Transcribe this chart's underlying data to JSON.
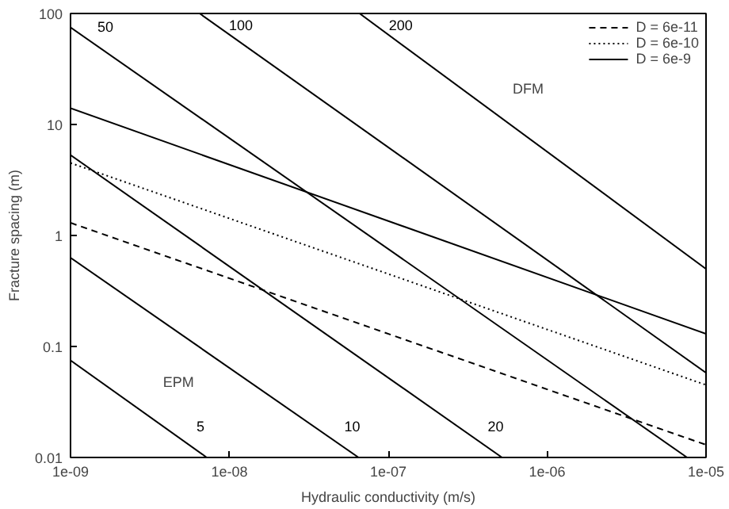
{
  "chart_data": {
    "type": "line",
    "xlabel": "Hydraulic conductivity (m/s)",
    "ylabel": "Fracture spacing (m)",
    "log": "xy",
    "grid": false,
    "legend": "top right",
    "xlim": [
      1e-09,
      1e-05
    ],
    "ylim": [
      0.01,
      100
    ],
    "xticks": [
      {
        "value": 1e-09,
        "label": "1e-09"
      },
      {
        "value": 1e-08,
        "label": "1e-08"
      },
      {
        "value": 1e-07,
        "label": "1e-07"
      },
      {
        "value": 1e-06,
        "label": "1e-06"
      },
      {
        "value": 1e-05,
        "label": "1e-05"
      }
    ],
    "yticks": [
      0.01,
      0.1,
      1,
      10,
      100
    ],
    "series": [
      {
        "name": "D = 6e-11",
        "color": "#000000",
        "line_style": "dashed",
        "x": [
          1e-09,
          1e-05
        ],
        "values": [
          1.3,
          0.013
        ]
      },
      {
        "name": "D = 6e-10",
        "color": "#000000",
        "line_style": "dotted",
        "x": [
          1e-09,
          1e-05
        ],
        "values": [
          4.5,
          0.045
        ]
      },
      {
        "name": "D = 6e-9",
        "color": "#000000",
        "line_style": "solid",
        "x": [
          1e-09,
          1e-05
        ],
        "values": [
          14,
          0.13
        ]
      },
      {
        "name": "5",
        "color": "#000000",
        "line_style": "solid",
        "x": [
          1e-09,
          7.2e-09
        ],
        "values": [
          0.075,
          0.01
        ]
      },
      {
        "name": "10",
        "color": "#000000",
        "line_style": "solid",
        "x": [
          1e-09,
          6.5e-08
        ],
        "values": [
          0.63,
          0.01
        ]
      },
      {
        "name": "20",
        "color": "#000000",
        "line_style": "solid",
        "x": [
          1e-09,
          5.2e-07
        ],
        "values": [
          5.3,
          0.01
        ]
      },
      {
        "name": "50",
        "color": "#000000",
        "line_style": "solid",
        "x": [
          1e-09,
          7.6e-06
        ],
        "values": [
          75,
          0.01
        ]
      },
      {
        "name": "100",
        "color": "#000000",
        "line_style": "solid",
        "x": [
          6.5e-09,
          1e-05
        ],
        "values": [
          100,
          0.058
        ]
      },
      {
        "name": "200",
        "color": "#000000",
        "line_style": "solid",
        "x": [
          6.6e-08,
          1e-05
        ],
        "values": [
          100,
          0.5
        ]
      }
    ],
    "annotations": [
      "EPM",
      "DFM"
    ]
  }
}
